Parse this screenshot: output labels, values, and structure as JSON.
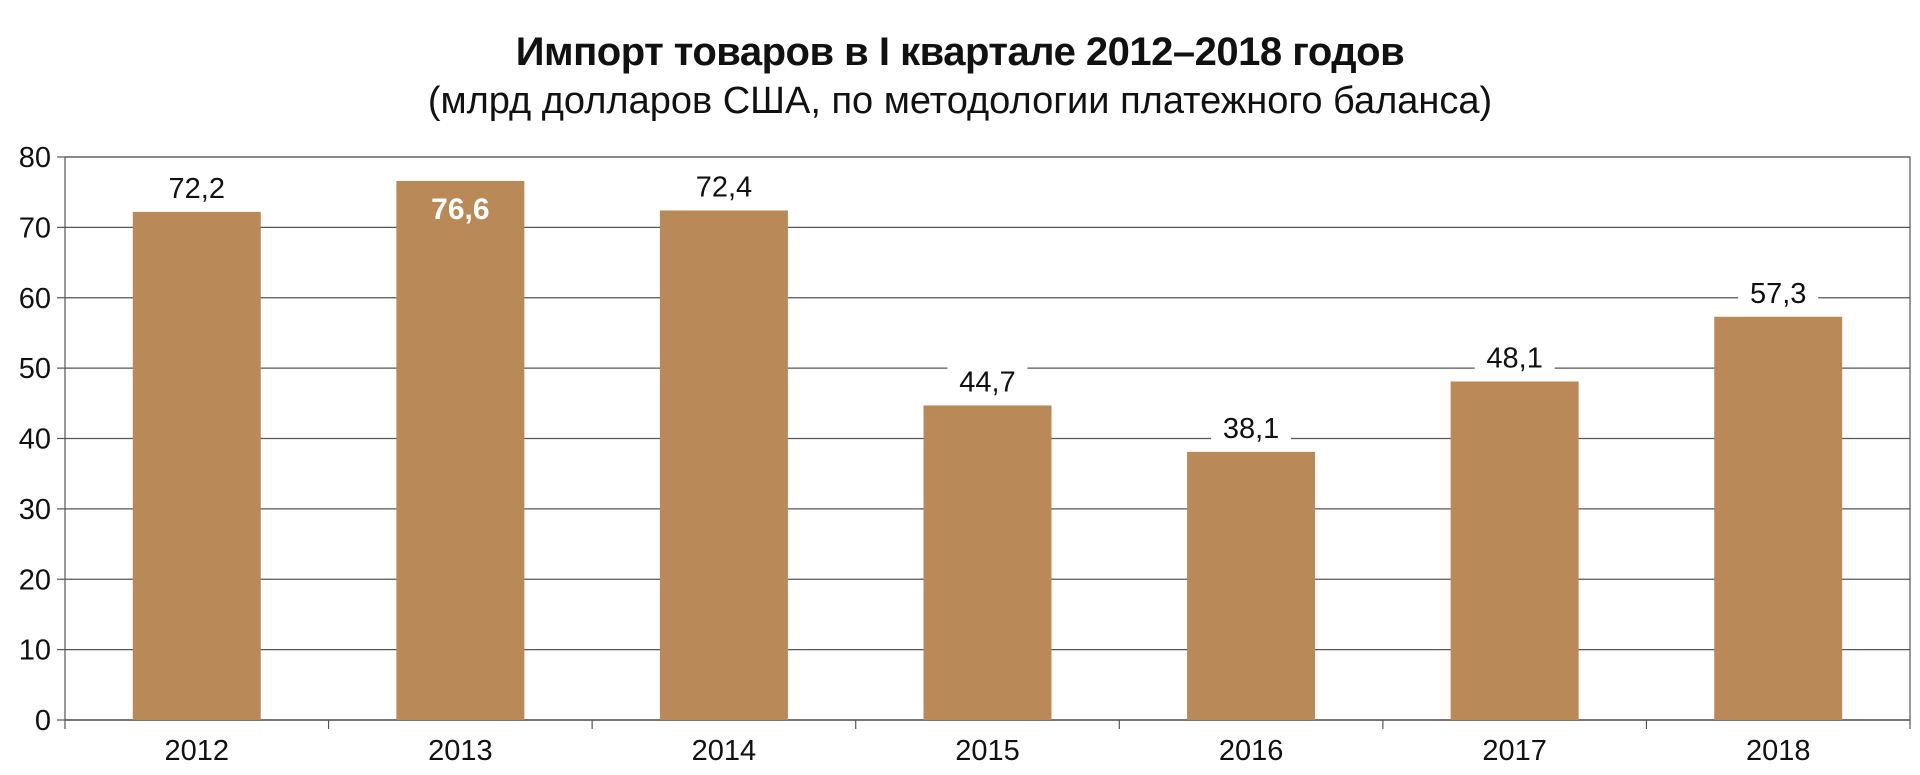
{
  "chart_data": {
    "type": "bar",
    "title": "Импорт товаров в I квартале 2012–2018 годов",
    "subtitle": "(млрд долларов США, по методологии платежного баланса)",
    "categories": [
      "2012",
      "2013",
      "2014",
      "2015",
      "2016",
      "2017",
      "2018"
    ],
    "values": [
      72.2,
      76.6,
      72.4,
      44.7,
      38.1,
      48.1,
      57.3
    ],
    "data_labels": [
      "72,2",
      "76,6",
      "72,4",
      "44,7",
      "38,1",
      "48,1",
      "57,3"
    ],
    "highlighted_index": 1,
    "ylim": [
      0,
      80
    ],
    "yticks": [
      "0",
      "10",
      "20",
      "30",
      "40",
      "50",
      "60",
      "70",
      "80"
    ],
    "grid": true,
    "bar_color": "#b98a58",
    "highlight_label_color": "#ffffff"
  }
}
